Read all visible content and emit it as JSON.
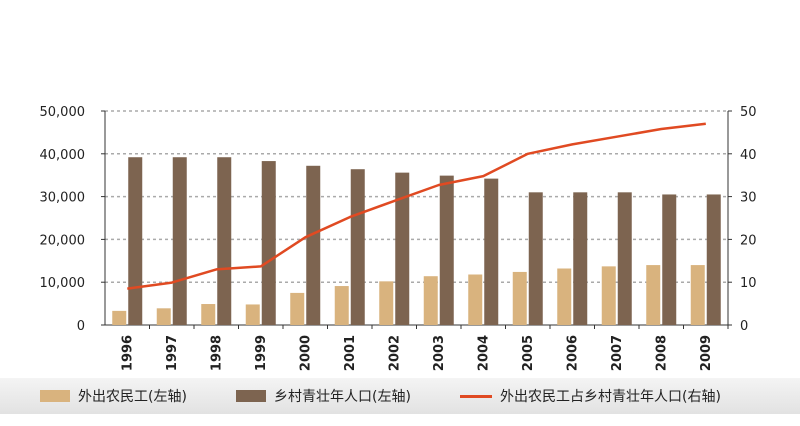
{
  "chart_data": {
    "type": "bar+line",
    "categories": [
      "1996",
      "1997",
      "1998",
      "1999",
      "2000",
      "2001",
      "2002",
      "2003",
      "2004",
      "2005",
      "2006",
      "2007",
      "2008",
      "2009"
    ],
    "series": [
      {
        "name": "外出农民工(左轴)",
        "type": "bar",
        "axis": "left",
        "color": "#d9b37e",
        "values": [
          3300,
          3900,
          4900,
          4800,
          7500,
          9100,
          10200,
          11400,
          11800,
          12400,
          13200,
          13700,
          14000,
          14000
        ]
      },
      {
        "name": "乡村青壮年人口(左轴)",
        "type": "bar",
        "axis": "left",
        "color": "#7d6450",
        "values": [
          39200,
          39200,
          39200,
          38300,
          37200,
          36400,
          35600,
          34900,
          34200,
          31000,
          31000,
          31000,
          30500,
          30500
        ]
      },
      {
        "name": "外出农民工占乡村青壮年人口(右轴)",
        "type": "line",
        "axis": "right",
        "color": "#e04a22",
        "values": [
          8.5,
          9.9,
          13.0,
          13.7,
          20.5,
          25.2,
          29.0,
          32.7,
          34.8,
          40.0,
          42.2,
          44.0,
          45.8,
          47.0
        ]
      }
    ],
    "left_axis": {
      "ylim": [
        0,
        50000
      ],
      "ticks": [
        "0",
        "10,000",
        "20,000",
        "30,000",
        "40,000",
        "50,000"
      ]
    },
    "right_axis": {
      "ylim": [
        0,
        50
      ],
      "ticks": [
        "0",
        "10",
        "20",
        "30",
        "40",
        "50"
      ]
    },
    "grid": "horizontal dashed",
    "legend_position": "bottom"
  },
  "legend": {
    "item1": "外出农民工(左轴)",
    "item2": "乡村青壮年人口(左轴)",
    "item3": "外出农民工占乡村青壮年人口(右轴)"
  }
}
